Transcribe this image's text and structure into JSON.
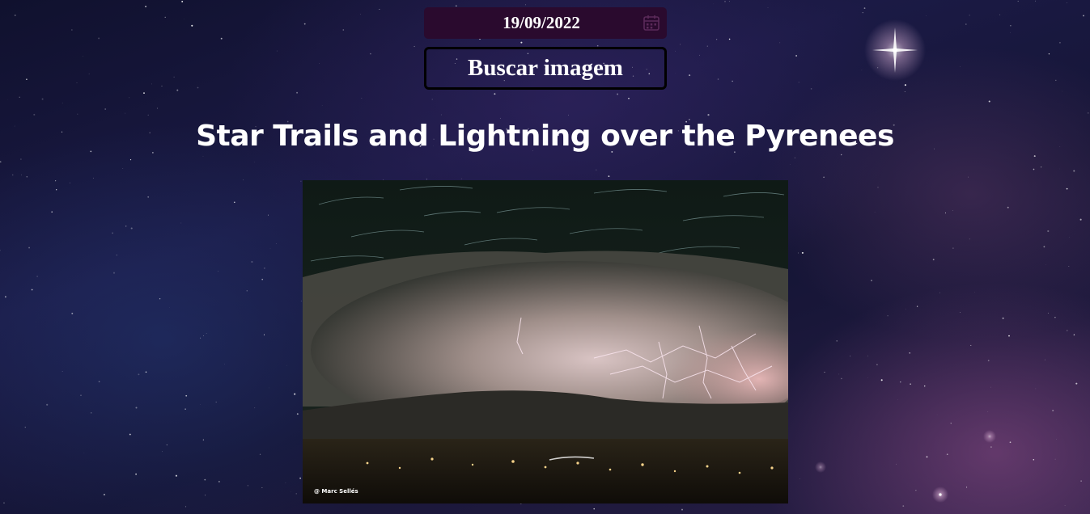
{
  "date_picker": {
    "value": "19/09/2022",
    "icon": "calendar-icon"
  },
  "search": {
    "button_label": "Buscar imagem"
  },
  "apod": {
    "title": "Star Trails and Lightning over the Pyrenees",
    "credit": "@ Marc Sellés"
  },
  "colors": {
    "date_field_bg": "#2a0a2e",
    "text": "#ffffff",
    "button_border": "#000000"
  }
}
